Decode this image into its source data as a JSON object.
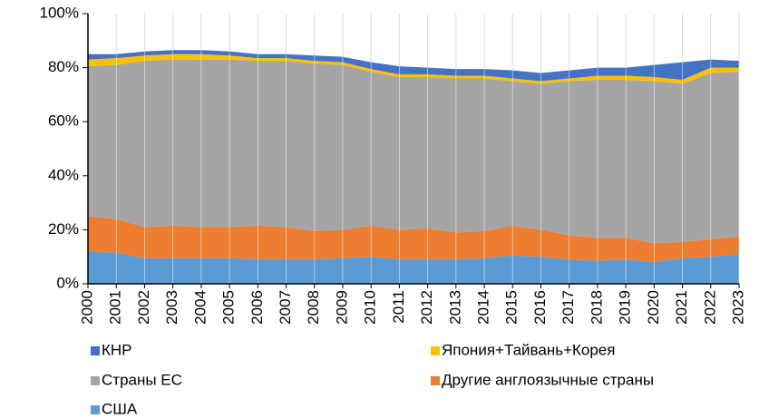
{
  "chart_data": {
    "type": "stacked-area",
    "categories": [
      "2000",
      "2001",
      "2002",
      "2003",
      "2004",
      "2005",
      "2006",
      "2007",
      "2008",
      "2009",
      "2010",
      "2011",
      "2012",
      "2013",
      "2014",
      "2015",
      "2016",
      "2017",
      "2018",
      "2019",
      "2020",
      "2021",
      "2022",
      "2023"
    ],
    "series": [
      {
        "name": "США",
        "color": "#5b9bd5",
        "values": [
          12,
          11.5,
          9.5,
          9.5,
          9.5,
          9.5,
          9,
          9,
          9,
          9.5,
          10,
          9,
          9,
          9,
          9.5,
          10.5,
          10,
          9,
          8.5,
          9,
          8,
          9.5,
          10,
          11
        ]
      },
      {
        "name": "Другие англоязычные страны",
        "color": "#ed7d31",
        "values": [
          13,
          12.5,
          11.5,
          12,
          11.5,
          11.5,
          12.5,
          12,
          10.5,
          10.5,
          11.5,
          11,
          11.5,
          10,
          10,
          11,
          10,
          9,
          8.5,
          8,
          7,
          6,
          6.5,
          6.5
        ]
      },
      {
        "name": "Страны ЕС",
        "color": "#a5a5a5",
        "values": [
          55.5,
          57,
          61.5,
          61.5,
          62,
          62,
          61,
          61.5,
          62,
          61,
          57,
          56.5,
          56,
          57,
          56.5,
          53.5,
          54,
          57,
          58.5,
          58.5,
          60,
          58.5,
          61.5,
          61
        ]
      },
      {
        "name": "Япония+Тайвань+Корея",
        "color": "#ffc000",
        "values": [
          2.5,
          2.5,
          2,
          2,
          2,
          1.5,
          1,
          1,
          1,
          1,
          1,
          1,
          1,
          1,
          1,
          1,
          1,
          1,
          1.5,
          1.5,
          1.5,
          1.5,
          2,
          1.5
        ]
      },
      {
        "name": "КНР",
        "color": "#4472c4",
        "values": [
          2,
          1.5,
          1.5,
          1.5,
          1.5,
          1.5,
          1.5,
          1.5,
          2,
          2,
          2.5,
          3,
          2.5,
          2.5,
          2.5,
          3,
          3,
          3,
          3,
          3,
          4.5,
          6.5,
          3,
          2.5
        ]
      }
    ],
    "ylim": [
      0,
      100
    ],
    "yticks": [
      {
        "value": 0,
        "label": "0%"
      },
      {
        "value": 20,
        "label": "20%"
      },
      {
        "value": 40,
        "label": "40%"
      },
      {
        "value": 60,
        "label": "60%"
      },
      {
        "value": 80,
        "label": "80%"
      },
      {
        "value": 100,
        "label": "100%"
      }
    ],
    "stacked": true
  }
}
